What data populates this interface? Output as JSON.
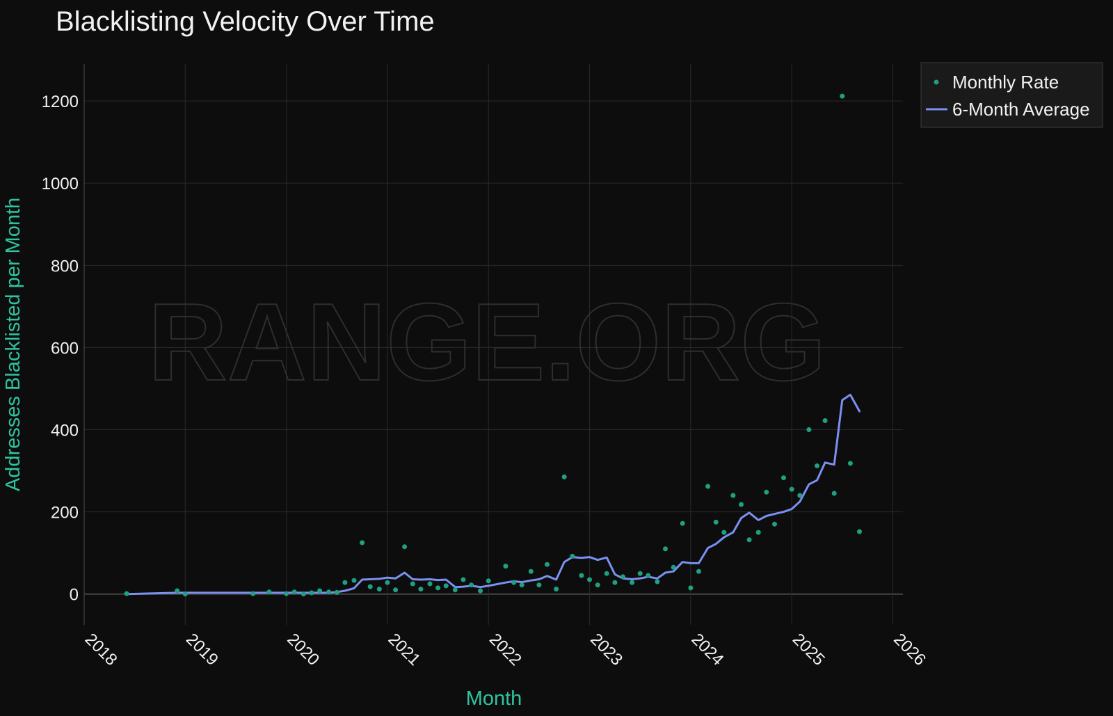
{
  "chart_data": {
    "type": "scatter",
    "title": "Blacklisting Velocity Over Time",
    "xlabel": "Month",
    "ylabel": "Addresses Blacklisted per Month",
    "watermark": "RANGE.ORG",
    "xlim": [
      2018.0,
      2026.1
    ],
    "ylim": [
      -75,
      1290
    ],
    "x_ticks": [
      2018,
      2019,
      2020,
      2021,
      2022,
      2023,
      2024,
      2025,
      2026
    ],
    "x_tick_labels": [
      "2018",
      "2019",
      "2020",
      "2021",
      "2022",
      "2023",
      "2024",
      "2025",
      "2026"
    ],
    "y_ticks": [
      0,
      200,
      400,
      600,
      800,
      1000,
      1200
    ],
    "y_tick_labels": [
      "0",
      "200",
      "400",
      "600",
      "800",
      "1000",
      "1200"
    ],
    "grid": true,
    "legend_position": "top-right-outside",
    "colors": {
      "background": "#0d0d0d",
      "grid": "#2a2a2a",
      "zero_line": "#444444",
      "axis_title": "#2ec4a0",
      "text": "#f2f2f2",
      "monthly_rate": "#1fa082",
      "average": "#7b90f0"
    },
    "series": [
      {
        "name": "Monthly Rate",
        "kind": "markers",
        "x": [
          2018.42,
          2018.92,
          2019.0,
          2019.67,
          2019.83,
          2020.0,
          2020.08,
          2020.17,
          2020.25,
          2020.33,
          2020.42,
          2020.5,
          2020.58,
          2020.67,
          2020.75,
          2020.83,
          2020.92,
          2021.0,
          2021.08,
          2021.17,
          2021.25,
          2021.33,
          2021.42,
          2021.5,
          2021.58,
          2021.67,
          2021.75,
          2021.83,
          2021.92,
          2022.0,
          2022.17,
          2022.25,
          2022.33,
          2022.42,
          2022.5,
          2022.58,
          2022.67,
          2022.75,
          2022.83,
          2022.92,
          2023.0,
          2023.08,
          2023.17,
          2023.25,
          2023.33,
          2023.42,
          2023.5,
          2023.58,
          2023.67,
          2023.75,
          2023.83,
          2023.92,
          2024.0,
          2024.08,
          2024.17,
          2024.25,
          2024.33,
          2024.42,
          2024.5,
          2024.58,
          2024.67,
          2024.75,
          2024.83,
          2024.92,
          2025.0,
          2025.08,
          2025.17,
          2025.25,
          2025.33,
          2025.42,
          2025.5,
          2025.58,
          2025.67
        ],
        "values": [
          1,
          8,
          0,
          1,
          5,
          1,
          5,
          0,
          3,
          8,
          5,
          4,
          28,
          33,
          125,
          18,
          12,
          28,
          10,
          115,
          25,
          12,
          25,
          15,
          20,
          10,
          35,
          22,
          8,
          32,
          68,
          28,
          22,
          55,
          22,
          72,
          12,
          285,
          92,
          45,
          35,
          22,
          50,
          28,
          42,
          28,
          50,
          45,
          30,
          110,
          65,
          172,
          15,
          55,
          262,
          175,
          150,
          240,
          218,
          132,
          150,
          248,
          170,
          283,
          255,
          240,
          400,
          312,
          422,
          245,
          1212,
          318,
          152
        ]
      },
      {
        "name": "6-Month Average",
        "kind": "line",
        "x": [
          2018.42,
          2018.92,
          2019.0,
          2019.67,
          2019.83,
          2020.0,
          2020.08,
          2020.17,
          2020.25,
          2020.33,
          2020.42,
          2020.5,
          2020.58,
          2020.67,
          2020.75,
          2020.83,
          2020.92,
          2021.0,
          2021.08,
          2021.17,
          2021.25,
          2021.33,
          2021.42,
          2021.5,
          2021.58,
          2021.67,
          2021.75,
          2021.83,
          2021.92,
          2022.0,
          2022.17,
          2022.25,
          2022.33,
          2022.42,
          2022.5,
          2022.58,
          2022.67,
          2022.75,
          2022.83,
          2022.92,
          2023.0,
          2023.08,
          2023.17,
          2023.25,
          2023.33,
          2023.42,
          2023.5,
          2023.58,
          2023.67,
          2023.75,
          2023.83,
          2023.92,
          2024.0,
          2024.08,
          2024.17,
          2024.25,
          2024.33,
          2024.42,
          2024.5,
          2024.58,
          2024.67,
          2024.75,
          2024.83,
          2024.92,
          2025.0,
          2025.08,
          2025.17,
          2025.25,
          2025.33,
          2025.42,
          2025.5,
          2025.58,
          2025.67
        ],
        "values": [
          0,
          3,
          3,
          3,
          3,
          3,
          3,
          3,
          3,
          3,
          3,
          5,
          8,
          14,
          35,
          36,
          37,
          40,
          38,
          52,
          36,
          35,
          36,
          34,
          35,
          17,
          18,
          20,
          17,
          20,
          28,
          31,
          29,
          33,
          36,
          44,
          35,
          78,
          90,
          88,
          90,
          83,
          89,
          48,
          38,
          36,
          38,
          42,
          38,
          52,
          55,
          78,
          75,
          75,
          112,
          122,
          138,
          150,
          185,
          198,
          180,
          190,
          195,
          200,
          207,
          225,
          267,
          277,
          320,
          315,
          472,
          485,
          445
        ]
      }
    ]
  }
}
